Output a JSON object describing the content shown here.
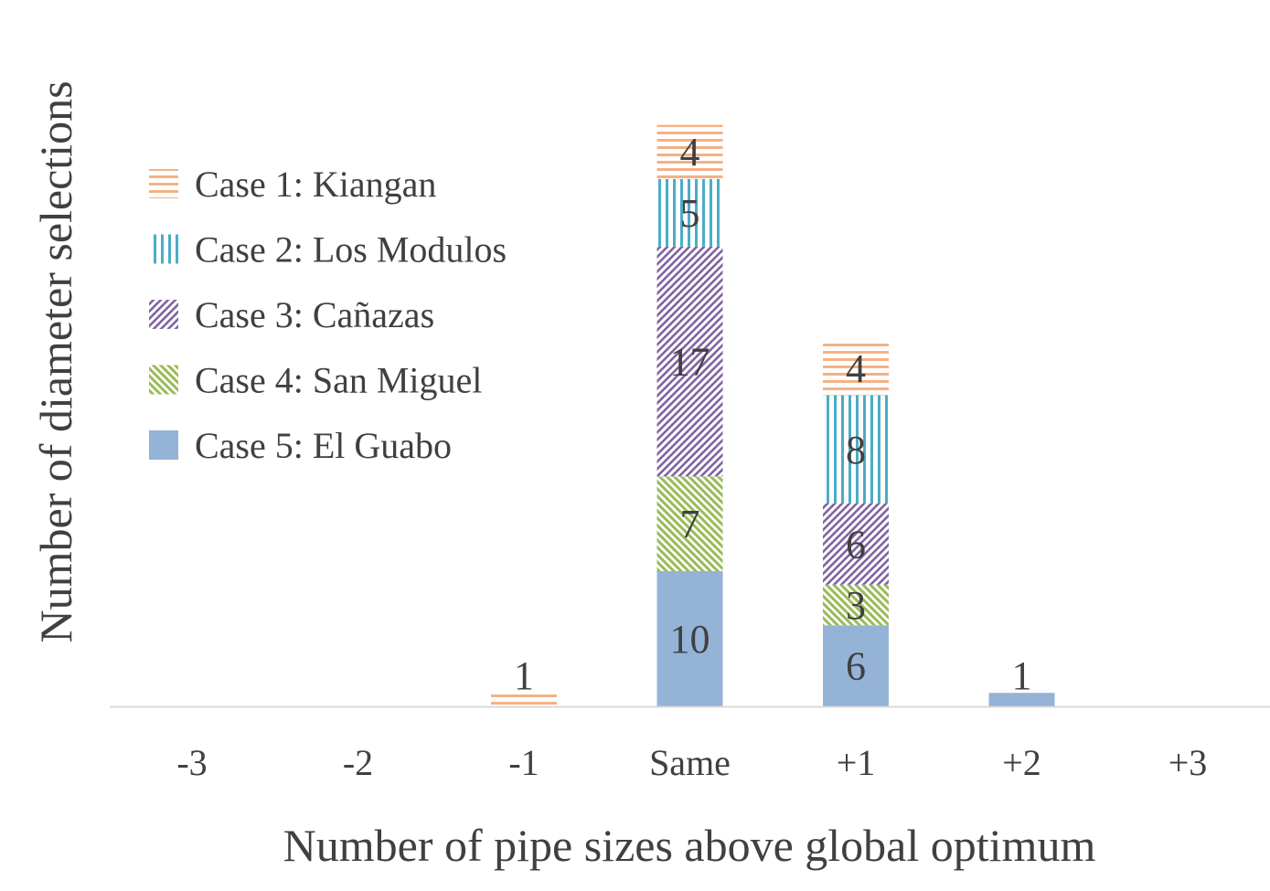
{
  "chart_data": {
    "type": "bar",
    "stacked": true,
    "title": "",
    "xlabel": "Number of pipe sizes above global optimum",
    "ylabel": "Number of diameter selections",
    "categories": [
      "-3",
      "-2",
      "-1",
      "Same",
      "+1",
      "+2",
      "+3"
    ],
    "ylim": [
      0,
      43
    ],
    "grid": false,
    "legend_position": "top-left",
    "series": [
      {
        "name": "Case 5: El Guabo",
        "values": [
          0,
          0,
          0,
          10,
          6,
          1,
          0
        ],
        "color": "#95b3d7",
        "pattern": "solid"
      },
      {
        "name": "Case 4: San Miguel",
        "values": [
          0,
          0,
          0,
          7,
          3,
          0,
          0
        ],
        "color": "#9bbb59",
        "pattern": "wide-downward-diagonal"
      },
      {
        "name": "Case 3: Cañazas",
        "values": [
          0,
          0,
          0,
          17,
          6,
          0,
          0
        ],
        "color": "#8064a2",
        "pattern": "upward-diagonal"
      },
      {
        "name": "Case 2: Los Modulos",
        "values": [
          0,
          0,
          0,
          5,
          8,
          0,
          0
        ],
        "color": "#4bacc6",
        "pattern": "vertical"
      },
      {
        "name": "Case 1: Kiangan",
        "values": [
          0,
          0,
          1,
          4,
          4,
          0,
          0
        ],
        "color": "#f4b183",
        "pattern": "horizontal"
      }
    ]
  }
}
